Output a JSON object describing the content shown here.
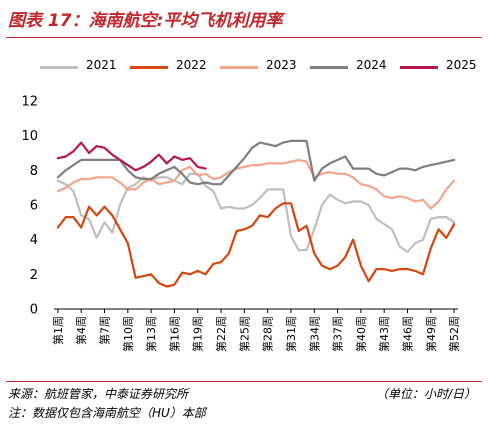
{
  "header": {
    "title": "图表 17：海南航空:平均飞机利用率"
  },
  "footer": {
    "source": "来源：航班管家，中泰证券研究所",
    "unit": "（单位：小时/日）",
    "note": "注：数据仅包含海南航空（HU）本部"
  },
  "chart_data": {
    "type": "line",
    "title": "",
    "xlabel": "",
    "ylabel": "",
    "ylim": [
      0,
      12
    ],
    "yticks": [
      "0",
      "2",
      "4",
      "6",
      "8",
      "10",
      "12"
    ],
    "grid": false,
    "legend_position": "top",
    "categories": [
      "第1周",
      "第2周",
      "第3周",
      "第4周",
      "第5周",
      "第6周",
      "第7周",
      "第8周",
      "第9周",
      "第10周",
      "第11周",
      "第12周",
      "第13周",
      "第14周",
      "第15周",
      "第16周",
      "第17周",
      "第18周",
      "第19周",
      "第20周",
      "第21周",
      "第22周",
      "第23周",
      "第24周",
      "第25周",
      "第26周",
      "第27周",
      "第28周",
      "第29周",
      "第30周",
      "第31周",
      "第32周",
      "第33周",
      "第34周",
      "第35周",
      "第36周",
      "第37周",
      "第38周",
      "第39周",
      "第40周",
      "第41周",
      "第42周",
      "第43周",
      "第44周",
      "第45周",
      "第46周",
      "第47周",
      "第48周",
      "第49周",
      "第50周",
      "第51周",
      "第52周"
    ],
    "xtick_labels": [
      "第1周",
      "第4周",
      "第7周",
      "第10周",
      "第13周",
      "第16周",
      "第19周",
      "第22周",
      "第25周",
      "第28周",
      "第31周",
      "第34周",
      "第37周",
      "第40周",
      "第43周",
      "第46周",
      "第49周",
      "第52周"
    ],
    "series": [
      {
        "name": "2021",
        "color": "#bfbfbf",
        "values": [
          7.4,
          7.2,
          6.8,
          5.4,
          5.2,
          4.1,
          5.0,
          4.4,
          6.0,
          7.0,
          7.2,
          7.6,
          7.4,
          7.6,
          7.6,
          7.4,
          7.2,
          7.8,
          7.8,
          7.1,
          6.8,
          5.8,
          5.9,
          5.8,
          5.8,
          6.0,
          6.4,
          6.9,
          6.9,
          6.9,
          4.2,
          3.4,
          3.4,
          4.6,
          6.0,
          6.6,
          6.3,
          6.1,
          6.2,
          6.2,
          6.0,
          5.2,
          4.9,
          4.6,
          3.6,
          3.3,
          3.8,
          4.0,
          5.2,
          5.3,
          5.3,
          5.0
        ]
      },
      {
        "name": "2022",
        "color": "#d4470f",
        "values": [
          4.7,
          5.3,
          5.3,
          4.7,
          5.9,
          5.4,
          5.9,
          5.4,
          4.6,
          3.8,
          1.8,
          1.9,
          2.0,
          1.5,
          1.3,
          1.4,
          2.1,
          2.0,
          2.2,
          2.0,
          2.6,
          2.7,
          3.2,
          4.5,
          4.6,
          4.8,
          5.4,
          5.3,
          5.8,
          6.1,
          6.1,
          4.5,
          4.8,
          3.2,
          2.5,
          2.3,
          2.5,
          3.0,
          4.0,
          2.5,
          1.6,
          2.3,
          2.3,
          2.2,
          2.3,
          2.3,
          2.2,
          2.0,
          3.5,
          4.6,
          4.1,
          4.9
        ]
      },
      {
        "name": "2023",
        "color": "#f4a58b",
        "values": [
          6.8,
          7.0,
          7.3,
          7.5,
          7.5,
          7.6,
          7.6,
          7.6,
          7.3,
          6.9,
          6.9,
          7.3,
          7.5,
          7.2,
          7.3,
          7.4,
          8.0,
          8.2,
          7.7,
          7.8,
          7.5,
          7.6,
          7.9,
          8.1,
          8.2,
          8.3,
          8.3,
          8.4,
          8.4,
          8.4,
          8.5,
          8.6,
          8.5,
          7.6,
          7.8,
          7.9,
          7.8,
          7.8,
          7.6,
          7.2,
          7.1,
          6.9,
          6.5,
          6.4,
          6.5,
          6.4,
          6.2,
          6.3,
          5.8,
          6.2,
          6.9,
          7.4
        ]
      },
      {
        "name": "2024",
        "color": "#7f7f7f",
        "values": [
          7.6,
          8.0,
          8.3,
          8.6,
          8.6,
          8.6,
          8.6,
          8.6,
          8.6,
          8.0,
          7.6,
          7.5,
          7.5,
          7.8,
          8.0,
          8.2,
          7.8,
          7.3,
          7.2,
          7.3,
          7.2,
          7.2,
          7.7,
          8.2,
          8.7,
          9.3,
          9.6,
          9.5,
          9.4,
          9.6,
          9.7,
          9.7,
          9.7,
          7.4,
          8.1,
          8.4,
          8.6,
          8.8,
          8.1,
          8.1,
          8.1,
          7.8,
          7.7,
          7.9,
          8.1,
          8.1,
          8.0,
          8.2,
          8.3,
          8.4,
          8.5,
          8.6
        ]
      },
      {
        "name": "2025",
        "color": "#b5174b",
        "values": [
          8.7,
          8.8,
          9.1,
          9.6,
          9.0,
          9.4,
          9.3,
          8.9,
          8.6,
          8.3,
          8.0,
          8.2,
          8.5,
          8.9,
          8.4,
          8.8,
          8.6,
          8.7,
          8.2,
          8.1,
          null,
          null,
          null,
          null,
          null,
          null,
          null,
          null,
          null,
          null,
          null,
          null,
          null,
          null,
          null,
          null,
          null,
          null,
          null,
          null,
          null,
          null,
          null,
          null,
          null,
          null,
          null,
          null,
          null,
          null,
          null,
          null
        ]
      }
    ]
  }
}
